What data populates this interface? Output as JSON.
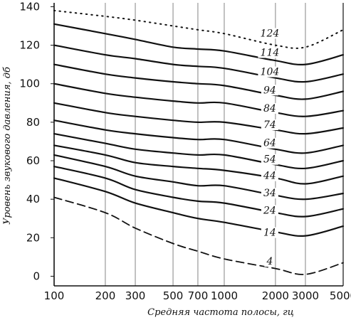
{
  "chart_data": {
    "type": "line",
    "xlabel": "Средняя частота полосы, гц",
    "ylabel": "Уровень звукового давления, дб",
    "xscale": "log",
    "xlim": [
      100,
      5000
    ],
    "ylim": [
      -5,
      142
    ],
    "grid": "vertical",
    "x_ticks": [
      100,
      200,
      300,
      500,
      700,
      1000,
      2000,
      3000,
      5000
    ],
    "x_tick_labels": [
      "100",
      "200",
      "300",
      "500",
      "700",
      "1000",
      "2000",
      "3000",
      "5000"
    ],
    "y_ticks": [
      0,
      20,
      40,
      60,
      80,
      100,
      120,
      140
    ],
    "y_tick_labels": [
      "0",
      "20",
      "40",
      "60",
      "80",
      "100",
      "120",
      "140"
    ],
    "x": [
      100,
      200,
      300,
      500,
      700,
      1000,
      2000,
      3000,
      5000
    ],
    "series": [
      {
        "name": "124",
        "style": "dotted",
        "label_x": 2000,
        "label_y": 124.5,
        "values": [
          138,
          135,
          133,
          130,
          128,
          126,
          120,
          119,
          128
        ]
      },
      {
        "name": "114",
        "style": "solid",
        "label_x": 2000,
        "label_y": 114.5,
        "values": [
          131,
          126,
          123,
          119,
          118,
          117,
          112,
          110,
          115
        ]
      },
      {
        "name": "104",
        "style": "solid",
        "label_x": 2000,
        "label_y": 104.5,
        "values": [
          120,
          115,
          113,
          110,
          109,
          108,
          103,
          101,
          105
        ]
      },
      {
        "name": "94",
        "style": "solid",
        "label_x": 2000,
        "label_y": 95,
        "values": [
          110,
          105,
          103,
          101,
          100,
          99,
          94,
          92,
          96
        ]
      },
      {
        "name": "84",
        "style": "solid",
        "label_x": 2000,
        "label_y": 85.5,
        "values": [
          100,
          95,
          93,
          91,
          90,
          90,
          85,
          83,
          86
        ]
      },
      {
        "name": "74",
        "style": "solid",
        "label_x": 2000,
        "label_y": 77,
        "values": [
          90,
          85,
          83,
          81,
          80,
          80,
          76,
          74,
          77
        ]
      },
      {
        "name": "64",
        "style": "solid",
        "label_x": 2000,
        "label_y": 67.5,
        "values": [
          81,
          76,
          74,
          72,
          71,
          71,
          66,
          64,
          68
        ]
      },
      {
        "name": "54",
        "style": "solid",
        "label_x": 2000,
        "label_y": 59,
        "values": [
          74,
          69,
          66,
          64,
          63,
          63,
          58,
          56,
          60
        ]
      },
      {
        "name": "44",
        "style": "solid",
        "label_x": 2000,
        "label_y": 50.5,
        "values": [
          68,
          63,
          59,
          57,
          56,
          55,
          51,
          48,
          52
        ]
      },
      {
        "name": "34",
        "style": "solid",
        "label_x": 2000,
        "label_y": 41.5,
        "values": [
          63,
          57,
          52,
          49,
          47,
          47,
          42,
          40,
          43
        ]
      },
      {
        "name": "24",
        "style": "solid",
        "label_x": 2000,
        "label_y": 32.5,
        "values": [
          57,
          51,
          45,
          41,
          39,
          38,
          33,
          31,
          35
        ]
      },
      {
        "name": "14",
        "style": "solid",
        "label_x": 2000,
        "label_y": 21,
        "values": [
          51,
          44,
          38,
          33,
          30,
          28,
          23,
          21,
          26
        ]
      },
      {
        "name": "4",
        "style": "dashed",
        "label_x": 2000,
        "label_y": 6,
        "values": [
          41,
          33,
          25,
          17,
          13,
          9,
          4,
          1,
          7
        ]
      }
    ]
  }
}
